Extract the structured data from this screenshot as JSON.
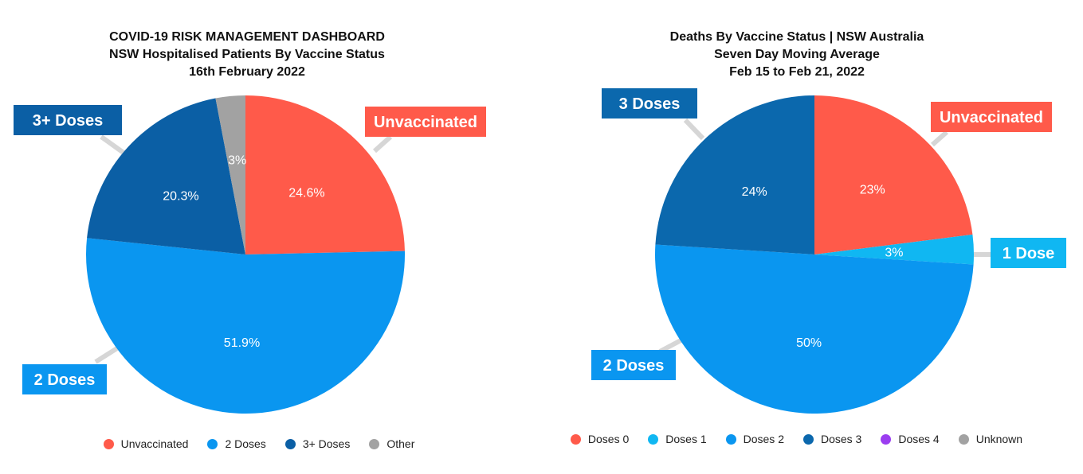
{
  "chart_data": [
    {
      "type": "pie",
      "title": "COVID-19 RISK MANAGEMENT DASHBOARD",
      "subtitle_1": "NSW Hospitalised Patients By Vaccine Status",
      "subtitle_2": "16th February 2022",
      "slices": [
        {
          "label": "Unvaccinated",
          "value": 24.6,
          "display": "24.6%",
          "color": "#ff5a4a",
          "callout": "Unvaccinated"
        },
        {
          "label": "2 Doses",
          "value": 51.9,
          "display": "51.9%",
          "color": "#0a96f0",
          "callout": "2 Doses"
        },
        {
          "label": "3+ Doses",
          "value": 20.3,
          "display": "20.3%",
          "color": "#0b5fa5",
          "callout": "3+ Doses"
        },
        {
          "label": "Other",
          "value": 3,
          "display": "3%",
          "color": "#a2a2a2",
          "callout": ""
        }
      ],
      "legend": [
        "Unvaccinated",
        "2 Doses",
        "3+ Doses",
        "Other"
      ]
    },
    {
      "type": "pie",
      "title": "Deaths By Vaccine Status | NSW Australia",
      "subtitle_1": "Seven Day Moving Average",
      "subtitle_2": "Feb 15 to Feb 21, 2022",
      "slices": [
        {
          "label": "Doses 0",
          "value": 23,
          "display": "23%",
          "color": "#ff5a4a",
          "callout": "Unvaccinated"
        },
        {
          "label": "Doses 1",
          "value": 3,
          "display": "3%",
          "color": "#10b7f2",
          "callout": "1 Dose"
        },
        {
          "label": "Doses 2",
          "value": 50,
          "display": "50%",
          "color": "#0a96f0",
          "callout": "2 Doses"
        },
        {
          "label": "Doses 3",
          "value": 24,
          "display": "24%",
          "color": "#0b68ad",
          "callout": "3 Doses"
        },
        {
          "label": "Doses 4",
          "value": 0,
          "display": "",
          "color": "#9b3df0",
          "callout": ""
        },
        {
          "label": "Unknown",
          "value": 0,
          "display": "",
          "color": "#a2a2a2",
          "callout": ""
        }
      ],
      "legend": [
        "Doses 0",
        "Doses 1",
        "Doses 2",
        "Doses 3",
        "Doses 4",
        "Unknown"
      ]
    }
  ]
}
